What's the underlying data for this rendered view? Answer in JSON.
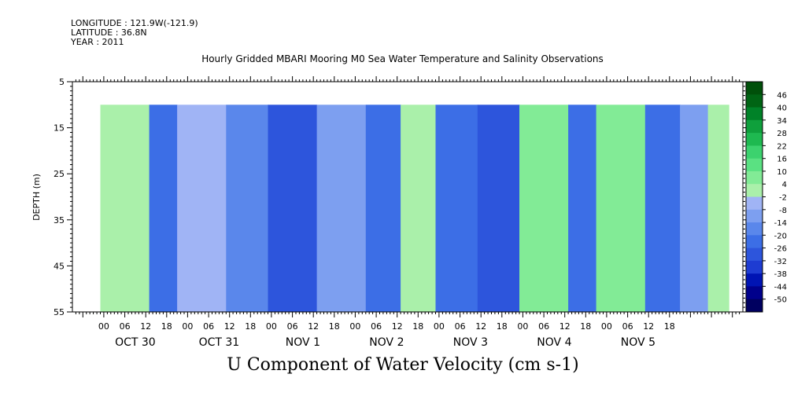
{
  "header": {
    "longitude": "LONGITUDE : 121.9W(-121.9)",
    "latitude": "LATITUDE : 36.8N",
    "year": "YEAR : 2011"
  },
  "caption": "U Component of Water Velocity (cm s-1)",
  "chart_data": {
    "type": "heatmap",
    "title": "Hourly Gridded MBARI Mooring M0 Sea Water Temperature and Salinity Observations",
    "xlabel": "",
    "ylabel": "DEPTH (m)",
    "y_range": [
      5,
      55
    ],
    "y_ticks": [
      5,
      15,
      25,
      35,
      45,
      55
    ],
    "y_reversed": true,
    "data_depth_range": [
      10,
      55
    ],
    "x_start": "2011-10-29 09:00",
    "x_end": "2011-11-05 23:00",
    "hour_ticks": [
      "00",
      "06",
      "12",
      "18",
      "00",
      "06",
      "12",
      "18",
      "00",
      "06",
      "12",
      "18",
      "00",
      "06",
      "12",
      "18",
      "00",
      "06",
      "12",
      "18",
      "00",
      "06",
      "12",
      "18",
      "00",
      "06",
      "12",
      "18"
    ],
    "day_labels": [
      "OCT 30",
      "OCT 31",
      "NOV  1",
      "NOV  2",
      "NOV  3",
      "NOV  4",
      "NOV  5"
    ],
    "colorbar_levels": [
      "46",
      "40",
      "34",
      "28",
      "22",
      "16",
      "10",
      "4",
      "-2",
      "-8",
      "-14",
      "-20",
      "-26",
      "-32",
      "-38",
      "-44",
      "-50"
    ],
    "grid": false,
    "legend": "right colorbar",
    "series": [
      {
        "start_hour": 8,
        "end_hour": 22,
        "u_cm_s": 6
      },
      {
        "start_hour": 22,
        "end_hour": 30,
        "u_cm_s": -20
      },
      {
        "start_hour": 30,
        "end_hour": 44,
        "u_cm_s": 2
      },
      {
        "start_hour": 44,
        "end_hour": 56,
        "u_cm_s": -14
      },
      {
        "start_hour": 56,
        "end_hour": 70,
        "u_cm_s": -26
      },
      {
        "start_hour": 70,
        "end_hour": 84,
        "u_cm_s": -6
      },
      {
        "start_hour": 84,
        "end_hour": 94,
        "u_cm_s": -20
      },
      {
        "start_hour": 94,
        "end_hour": 104,
        "u_cm_s": 4
      },
      {
        "start_hour": 104,
        "end_hour": 116,
        "u_cm_s": -16
      },
      {
        "start_hour": 116,
        "end_hour": 128,
        "u_cm_s": -26
      },
      {
        "start_hour": 128,
        "end_hour": 142,
        "u_cm_s": 10
      },
      {
        "start_hour": 142,
        "end_hour": 150,
        "u_cm_s": -20
      },
      {
        "start_hour": 150,
        "end_hour": 164,
        "u_cm_s": 12
      },
      {
        "start_hour": 164,
        "end_hour": 174,
        "u_cm_s": -20
      },
      {
        "start_hour": 174,
        "end_hour": 182,
        "u_cm_s": -4
      },
      {
        "start_hour": 182,
        "end_hour": 188,
        "u_cm_s": 8
      }
    ]
  }
}
